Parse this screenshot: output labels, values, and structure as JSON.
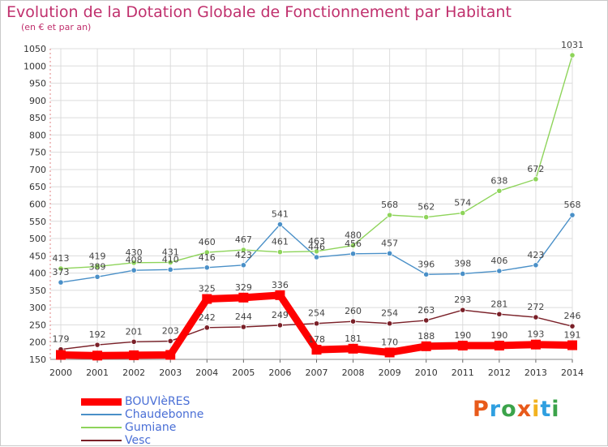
{
  "title": "Evolution de la Dotation Globale de Fonctionnement par Habitant",
  "subtitle": "(en € et par an)",
  "logo": {
    "letters": [
      "P",
      "r",
      "o",
      "x",
      "i",
      "t",
      "i"
    ],
    "colors": [
      "#e85a1a",
      "#2f9fe0",
      "#3ba34a",
      "#e85a1a",
      "#f2b21f",
      "#2f9fe0",
      "#3ba34a"
    ]
  },
  "chart_data": {
    "type": "line",
    "title": "Evolution de la Dotation Globale de Fonctionnement par Habitant",
    "subtitle": "(en € et par an)",
    "xlabel": "",
    "ylabel": "",
    "x": [
      "2000",
      "2001",
      "2002",
      "2003",
      "2004",
      "2005",
      "2006",
      "2007",
      "2008",
      "2009",
      "2010",
      "2011",
      "2012",
      "2013",
      "2014"
    ],
    "ylim": [
      150,
      1050
    ],
    "yticks": [
      150,
      200,
      250,
      300,
      350,
      400,
      450,
      500,
      550,
      600,
      650,
      700,
      750,
      800,
      850,
      900,
      950,
      1000,
      1050
    ],
    "grid": true,
    "legend_position": "bottom-left",
    "series": [
      {
        "name": "BOUVIèRES",
        "color": "#ff0000",
        "values": [
          163,
          161,
          162,
          163,
          325,
          329,
          336,
          178,
          181,
          170,
          188,
          190,
          190,
          193,
          191
        ],
        "labels": [
          "",
          "",
          "",
          "",
          "325",
          "329",
          "336",
          "178",
          "181",
          "170",
          "188",
          "190",
          "190",
          "193",
          "191"
        ]
      },
      {
        "name": "Chaudebonne",
        "color": "#4a90c8",
        "values": [
          373,
          389,
          408,
          410,
          416,
          423,
          541,
          446,
          456,
          457,
          396,
          398,
          406,
          423,
          568
        ],
        "labels": [
          "373",
          "389",
          "408",
          "410",
          "416",
          "423",
          "541",
          "446",
          "456",
          "457",
          "396",
          "398",
          "406",
          "423",
          "568"
        ]
      },
      {
        "name": "Gumiane",
        "color": "#8ed45a",
        "values": [
          413,
          419,
          430,
          431,
          460,
          467,
          461,
          463,
          480,
          568,
          562,
          574,
          638,
          672,
          1031
        ],
        "labels": [
          "413",
          "419",
          "430",
          "431",
          "460",
          "467",
          "461",
          "463",
          "480",
          "568",
          "562",
          "574",
          "638",
          "672",
          "1031"
        ]
      },
      {
        "name": "Vesc",
        "color": "#7a2028",
        "values": [
          179,
          192,
          201,
          203,
          242,
          244,
          249,
          254,
          260,
          254,
          263,
          293,
          281,
          272,
          246
        ],
        "labels": [
          "179",
          "192",
          "201",
          "203",
          "242",
          "244",
          "249",
          "254",
          "260",
          "254",
          "263",
          "293",
          "281",
          "272",
          "246"
        ]
      }
    ]
  }
}
